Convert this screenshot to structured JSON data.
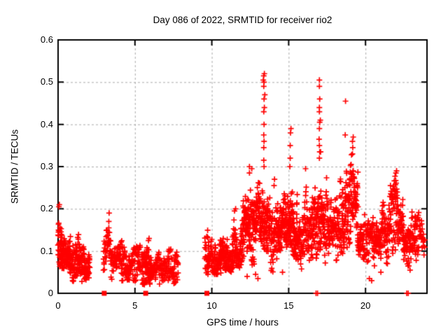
{
  "chart_data": {
    "type": "scatter",
    "title": "Day 086 of 2022, SRMTID for receiver rio2",
    "xlabel": "GPS time / hours",
    "ylabel": "SRMTID / TECUs",
    "xlim": [
      0,
      24
    ],
    "ylim": [
      0,
      0.6
    ],
    "xticks": [
      0,
      5,
      10,
      15,
      20
    ],
    "yticks": [
      0,
      0.1,
      0.2,
      0.3,
      0.4,
      0.5,
      0.6
    ],
    "grid": true,
    "grid_color": "#a9a9a9",
    "marker": "plus",
    "marker_color": "#ff0000",
    "border_color": "#000000",
    "series_name": "SRMTID for receiver rio2, day 086 of 2022",
    "clusters_format": [
      "x0_hours",
      "x1_hours",
      "n_points",
      "walks",
      "y_center",
      "y_spread",
      "y_min",
      "y_max"
    ],
    "clusters": [
      [
        0.0,
        0.25,
        45,
        3,
        0.125,
        0.035,
        0.055,
        0.21
      ],
      [
        0.2,
        0.8,
        90,
        3,
        0.095,
        0.03,
        0.04,
        0.185
      ],
      [
        0.75,
        2.05,
        160,
        3,
        0.075,
        0.025,
        0.028,
        0.14
      ],
      [
        2.95,
        3.45,
        42,
        2,
        0.09,
        0.03,
        0.05,
        0.155
      ],
      [
        3.45,
        4.45,
        95,
        3,
        0.07,
        0.025,
        0.03,
        0.125
      ],
      [
        4.45,
        5.35,
        80,
        3,
        0.068,
        0.025,
        0.028,
        0.115
      ],
      [
        5.45,
        6.05,
        85,
        3,
        0.065,
        0.028,
        0.02,
        0.13
      ],
      [
        6.05,
        7.8,
        140,
        3,
        0.055,
        0.022,
        0.02,
        0.105
      ],
      [
        9.55,
        10.6,
        115,
        3,
        0.09,
        0.028,
        0.045,
        0.165
      ],
      [
        10.55,
        11.35,
        95,
        3,
        0.085,
        0.026,
        0.05,
        0.155
      ],
      [
        11.35,
        12.0,
        85,
        3,
        0.105,
        0.032,
        0.06,
        0.195
      ],
      [
        12.0,
        12.75,
        115,
        3,
        0.16,
        0.05,
        0.06,
        0.3
      ],
      [
        12.75,
        13.6,
        125,
        3,
        0.185,
        0.055,
        0.08,
        0.31
      ],
      [
        13.6,
        14.35,
        95,
        3,
        0.145,
        0.045,
        0.05,
        0.275
      ],
      [
        14.35,
        15.0,
        95,
        3,
        0.135,
        0.04,
        0.06,
        0.265
      ],
      [
        15.0,
        15.55,
        90,
        3,
        0.165,
        0.05,
        0.08,
        0.31
      ],
      [
        15.55,
        16.35,
        95,
        3,
        0.135,
        0.045,
        0.05,
        0.295
      ],
      [
        16.4,
        17.3,
        125,
        3,
        0.175,
        0.05,
        0.08,
        0.315
      ],
      [
        17.3,
        18.5,
        135,
        3,
        0.165,
        0.05,
        0.07,
        0.33
      ],
      [
        18.5,
        19.5,
        135,
        3,
        0.195,
        0.05,
        0.08,
        0.365
      ],
      [
        19.5,
        20.7,
        125,
        3,
        0.125,
        0.035,
        0.04,
        0.245
      ],
      [
        20.7,
        21.6,
        100,
        3,
        0.145,
        0.04,
        0.07,
        0.26
      ],
      [
        21.6,
        22.45,
        110,
        3,
        0.165,
        0.04,
        0.09,
        0.285
      ],
      [
        22.45,
        23.3,
        95,
        3,
        0.125,
        0.035,
        0.06,
        0.22
      ],
      [
        23.25,
        23.85,
        40,
        2,
        0.15,
        0.03,
        0.09,
        0.21
      ]
    ],
    "spike_points": [
      [
        0.05,
        0.205
      ],
      [
        0.08,
        0.21
      ],
      [
        3.28,
        0.145
      ],
      [
        3.3,
        0.155
      ],
      [
        3.3,
        0.17
      ],
      [
        3.32,
        0.19
      ],
      [
        5.88,
        0.125
      ],
      [
        5.92,
        0.13
      ],
      [
        7.18,
        0.1
      ],
      [
        7.22,
        0.104
      ],
      [
        11.48,
        0.195
      ],
      [
        11.55,
        0.2
      ],
      [
        12.45,
        0.285
      ],
      [
        12.45,
        0.3
      ],
      [
        12.6,
        0.295
      ],
      [
        13.4,
        0.3
      ],
      [
        13.38,
        0.315
      ],
      [
        13.38,
        0.345
      ],
      [
        13.4,
        0.36
      ],
      [
        13.38,
        0.375
      ],
      [
        13.4,
        0.4
      ],
      [
        13.38,
        0.43
      ],
      [
        13.42,
        0.44
      ],
      [
        13.4,
        0.46
      ],
      [
        13.45,
        0.47
      ],
      [
        13.38,
        0.49
      ],
      [
        13.4,
        0.5
      ],
      [
        13.35,
        0.505
      ],
      [
        13.38,
        0.515
      ],
      [
        13.42,
        0.52
      ],
      [
        14.05,
        0.255
      ],
      [
        14.08,
        0.27
      ],
      [
        15.08,
        0.3
      ],
      [
        15.1,
        0.32
      ],
      [
        15.1,
        0.35
      ],
      [
        15.12,
        0.38
      ],
      [
        15.15,
        0.39
      ],
      [
        16.1,
        0.295
      ],
      [
        17.0,
        0.32
      ],
      [
        17.02,
        0.335
      ],
      [
        17.0,
        0.35
      ],
      [
        16.98,
        0.365
      ],
      [
        17.0,
        0.39
      ],
      [
        17.02,
        0.405
      ],
      [
        17.06,
        0.41
      ],
      [
        17.0,
        0.43
      ],
      [
        17.0,
        0.44
      ],
      [
        17.02,
        0.46
      ],
      [
        17.0,
        0.49
      ],
      [
        17.0,
        0.505
      ],
      [
        17.08,
        0.335
      ],
      [
        18.68,
        0.375
      ],
      [
        18.7,
        0.455
      ],
      [
        19.15,
        0.33
      ],
      [
        19.17,
        0.345
      ],
      [
        19.15,
        0.36
      ],
      [
        19.2,
        0.37
      ],
      [
        21.98,
        0.285
      ],
      [
        22.02,
        0.29
      ],
      [
        9.75,
        0.045
      ],
      [
        10.3,
        0.045
      ],
      [
        12.3,
        0.04
      ],
      [
        12.85,
        0.045
      ],
      [
        13.0,
        0.035
      ],
      [
        14.6,
        0.05
      ],
      [
        20.25,
        0.035
      ],
      [
        20.4,
        0.03
      ],
      [
        21.0,
        0.05
      ],
      [
        22.9,
        0.055
      ],
      [
        4.15,
        0.03
      ],
      [
        6.6,
        0.022
      ],
      [
        7.6,
        0.025
      ],
      [
        1.55,
        0.028
      ]
    ],
    "zero_value_squares_hours": [
      3.0,
      5.7,
      9.68
    ],
    "zero_value_plus_hours": [
      16.78,
      16.88,
      22.68,
      22.78
    ],
    "seed": 20220086
  }
}
